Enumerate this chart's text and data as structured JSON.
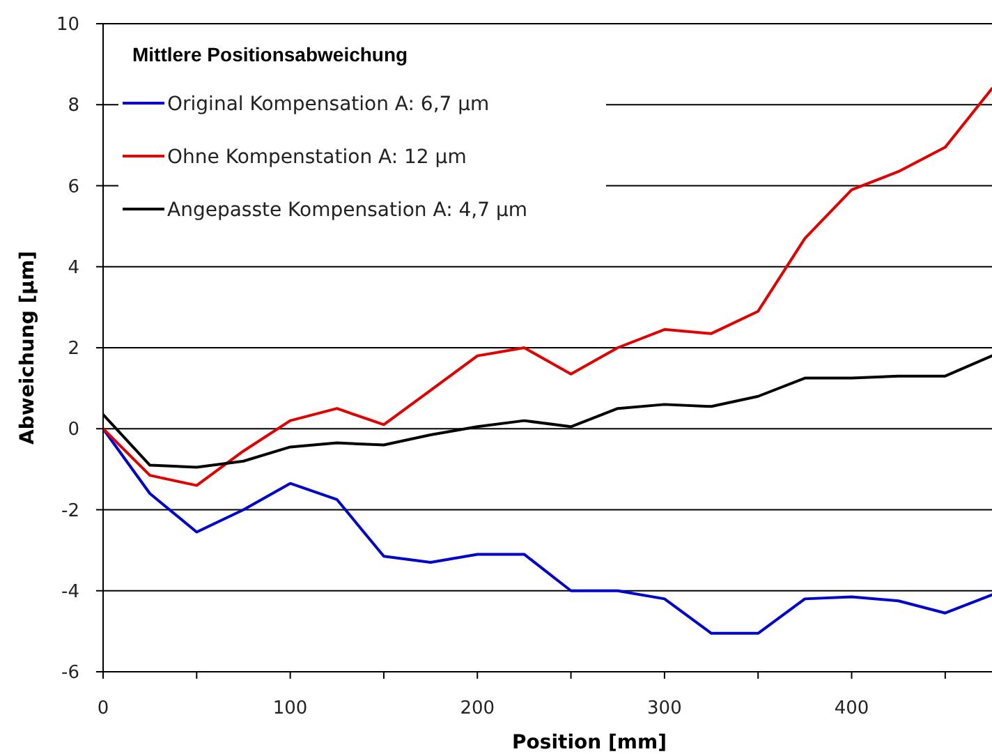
{
  "chart_data": {
    "type": "line",
    "legend_title": "Mittlere Positionsabweichung",
    "xlabel": "Position [mm]",
    "ylabel": "Abweichung [µm]",
    "x": [
      0,
      25,
      50,
      75,
      100,
      125,
      150,
      175,
      200,
      225,
      250,
      275,
      300,
      325,
      350,
      375,
      400,
      425,
      450,
      475
    ],
    "series": [
      {
        "name": "Original Kompensation A: 6,7 µm",
        "color": "#0000cc",
        "values": [
          0,
          -1.6,
          -2.55,
          -2.0,
          -1.35,
          -1.75,
          -3.15,
          -3.3,
          -3.1,
          -3.1,
          -4.0,
          -4.0,
          -4.2,
          -5.05,
          -5.05,
          -4.2,
          -4.15,
          -4.25,
          -4.55,
          -4.1
        ]
      },
      {
        "name": "Ohne Kompenstation A: 12 µm",
        "color": "#e00000",
        "values": [
          0,
          -1.15,
          -1.4,
          -0.55,
          0.2,
          0.5,
          0.1,
          0.95,
          1.8,
          2.0,
          1.35,
          2.0,
          2.45,
          2.35,
          2.9,
          4.7,
          5.9,
          6.35,
          6.95,
          8.4
        ]
      },
      {
        "name": "Angepasste Kompensation A: 4,7 µm",
        "color": "#000000",
        "values": [
          0.35,
          -0.9,
          -0.95,
          -0.8,
          -0.45,
          -0.35,
          -0.4,
          -0.15,
          0.05,
          0.2,
          0.05,
          0.5,
          0.6,
          0.55,
          0.8,
          1.25,
          1.25,
          1.3,
          1.3,
          1.8
        ]
      }
    ],
    "xlim": [
      0,
      475
    ],
    "xticks": [
      0,
      {
        "value": 50,
        "label": null
      },
      100,
      {
        "value": 150,
        "label": null
      },
      200,
      {
        "value": 250,
        "label": null
      },
      300,
      {
        "value": 350,
        "label": null
      },
      400,
      {
        "value": 450,
        "label": null
      }
    ],
    "ylim": [
      -6,
      10
    ],
    "yticks": [
      -6,
      -4,
      -2,
      0,
      2,
      4,
      6,
      8,
      10
    ],
    "grid": "y",
    "legend": "top left",
    "marker": "none",
    "line_style": "solid"
  }
}
